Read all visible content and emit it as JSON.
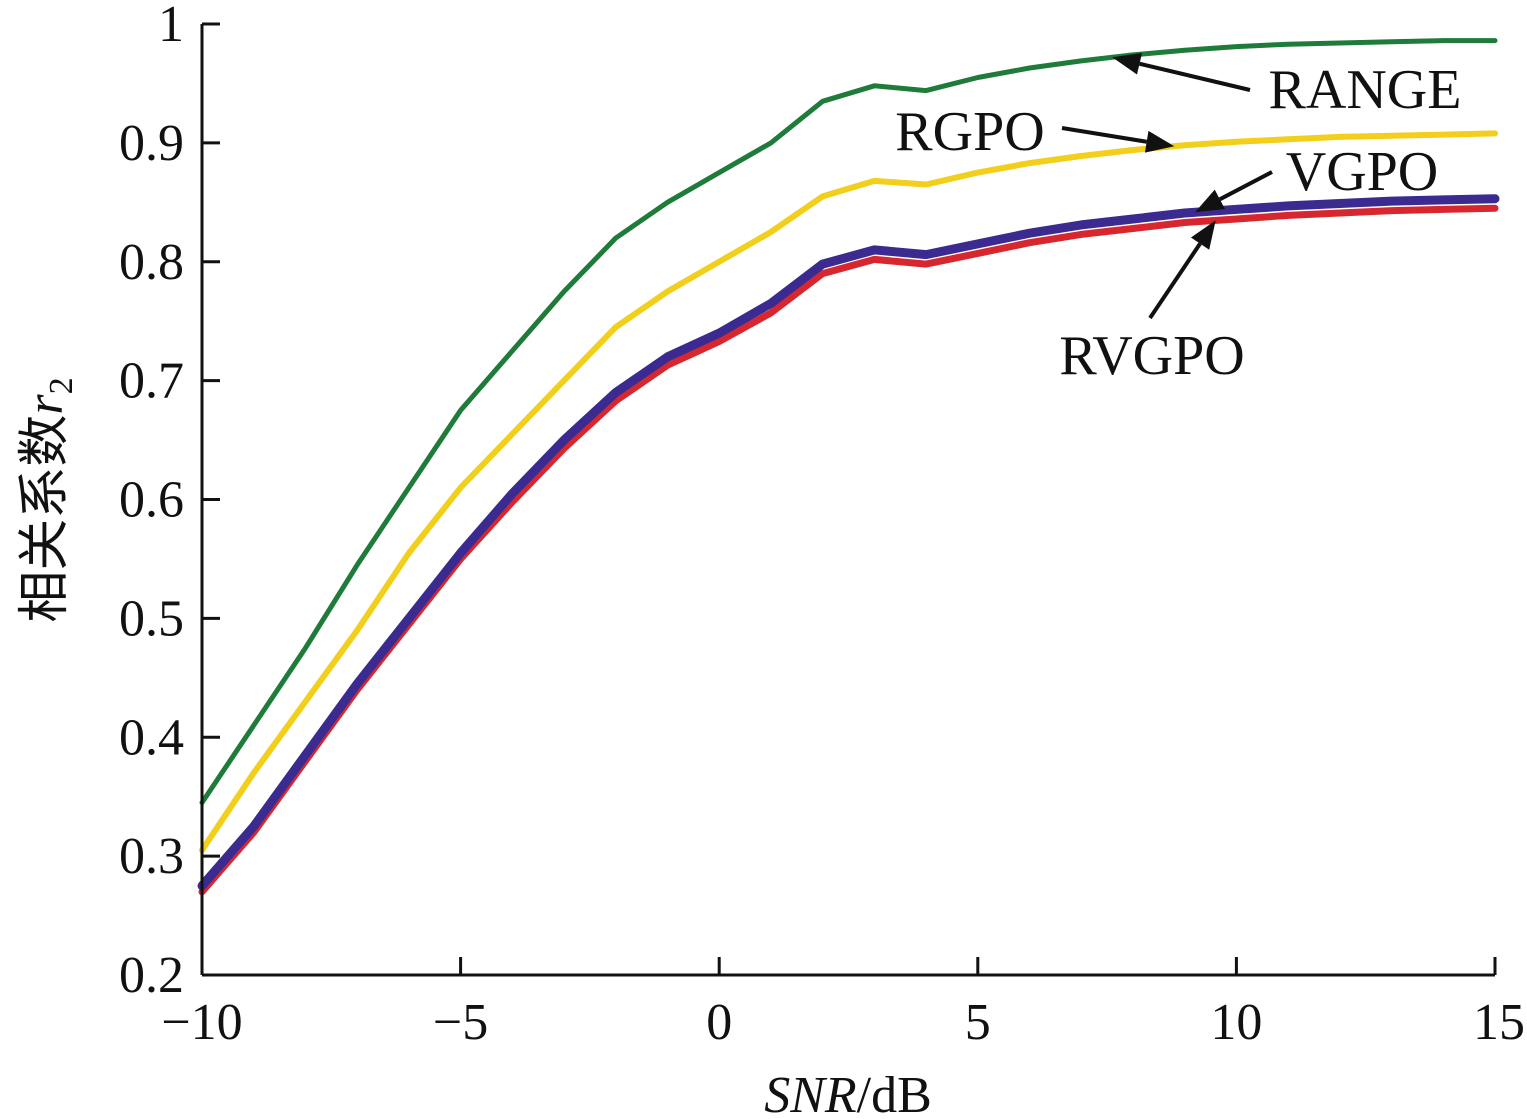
{
  "chart_data": {
    "type": "line",
    "xlabel": "SNR/dB",
    "xlabel_italic_part": "SNR",
    "xlabel_unit_part": "/dB",
    "ylabel": "相关系数r2",
    "ylabel_text": "相关系数",
    "ylabel_var": "r",
    "ylabel_sub": "2",
    "xlim": [
      -10,
      15
    ],
    "ylim": [
      0.2,
      1
    ],
    "xticks": [
      -10,
      -5,
      0,
      5,
      10,
      15
    ],
    "yticks": [
      0.2,
      0.3,
      0.4,
      0.5,
      0.6,
      0.7,
      0.8,
      0.9,
      1
    ],
    "xtick_labels": [
      "−10",
      "−5",
      "0",
      "5",
      "10",
      "15"
    ],
    "ytick_labels": [
      "0.2",
      "0.3",
      "0.4",
      "0.5",
      "0.6",
      "0.7",
      "0.8",
      "0.9",
      "1"
    ],
    "grid": false,
    "series": [
      {
        "name": "RANGE",
        "color": "#1e7b3a",
        "x": [
          -10,
          -9,
          -8,
          -7,
          -6,
          -5,
          -4,
          -3,
          -2,
          -1,
          0,
          1,
          2,
          3,
          4,
          5,
          6,
          7,
          8,
          9,
          10,
          11,
          12,
          13,
          14,
          15
        ],
        "values": [
          0.345,
          0.41,
          0.475,
          0.545,
          0.61,
          0.675,
          0.725,
          0.775,
          0.82,
          0.85,
          0.875,
          0.9,
          0.935,
          0.948,
          0.944,
          0.955,
          0.963,
          0.969,
          0.974,
          0.978,
          0.981,
          0.983,
          0.984,
          0.985,
          0.986,
          0.986
        ]
      },
      {
        "name": "RGPO",
        "color": "#f2cf1a",
        "x": [
          -10,
          -9,
          -8,
          -7,
          -6,
          -5,
          -4,
          -3,
          -2,
          -1,
          0,
          1,
          2,
          3,
          4,
          5,
          6,
          7,
          8,
          9,
          10,
          11,
          12,
          13,
          14,
          15
        ],
        "values": [
          0.305,
          0.37,
          0.43,
          0.49,
          0.555,
          0.61,
          0.655,
          0.7,
          0.745,
          0.775,
          0.8,
          0.825,
          0.855,
          0.868,
          0.865,
          0.875,
          0.883,
          0.889,
          0.894,
          0.898,
          0.901,
          0.903,
          0.905,
          0.906,
          0.907,
          0.908
        ]
      },
      {
        "name": "VGPO",
        "color": "#3b2a8f",
        "x": [
          -10,
          -9,
          -8,
          -7,
          -6,
          -5,
          -4,
          -3,
          -2,
          -1,
          0,
          1,
          2,
          3,
          4,
          5,
          6,
          7,
          8,
          9,
          10,
          11,
          12,
          13,
          14,
          15
        ],
        "values": [
          0.275,
          0.325,
          0.385,
          0.445,
          0.5,
          0.555,
          0.605,
          0.65,
          0.69,
          0.72,
          0.74,
          0.765,
          0.798,
          0.81,
          0.806,
          0.815,
          0.824,
          0.831,
          0.836,
          0.841,
          0.844,
          0.847,
          0.849,
          0.851,
          0.852,
          0.853
        ]
      },
      {
        "name": "RVGPO",
        "color": "#d8262e",
        "x": [
          -10,
          -9,
          -8,
          -7,
          -6,
          -5,
          -4,
          -3,
          -2,
          -1,
          0,
          1,
          2,
          3,
          4,
          5,
          6,
          7,
          8,
          9,
          10,
          11,
          12,
          13,
          14,
          15
        ],
        "values": [
          0.27,
          0.32,
          0.38,
          0.44,
          0.495,
          0.55,
          0.598,
          0.643,
          0.683,
          0.713,
          0.733,
          0.757,
          0.79,
          0.802,
          0.798,
          0.807,
          0.816,
          0.823,
          0.828,
          0.833,
          0.836,
          0.839,
          0.841,
          0.843,
          0.844,
          0.845
        ]
      }
    ],
    "annotations": [
      {
        "text": "RANGE",
        "points_to_series": "RANGE",
        "at_x": 7.6
      },
      {
        "text": "RGPO",
        "points_to_series": "RGPO",
        "at_x": 8.8
      },
      {
        "text": "VGPO",
        "points_to_series": "VGPO",
        "at_x": 9.2
      },
      {
        "text": "RVGPO",
        "points_to_series": "RVGPO",
        "at_x": 9.6
      }
    ]
  }
}
